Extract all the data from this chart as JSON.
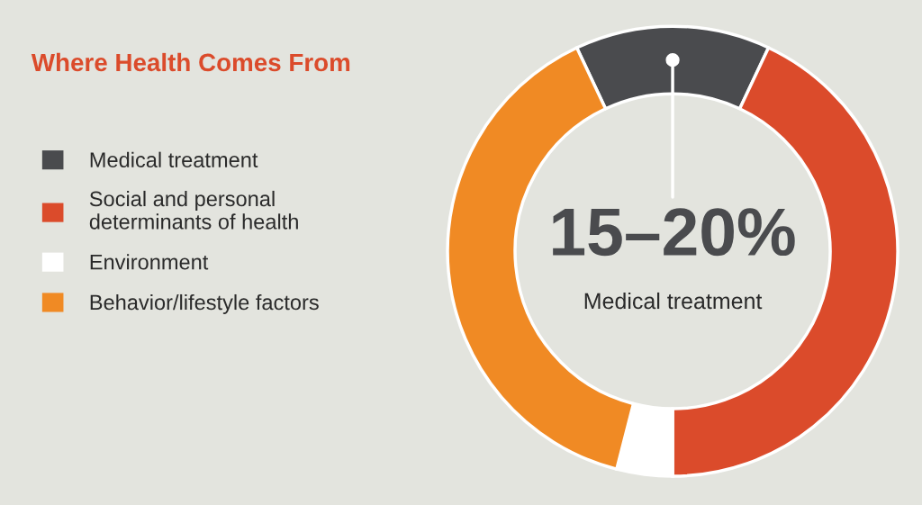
{
  "chart_data": {
    "type": "donut",
    "title": "Where Health Comes From",
    "categories": [
      "Medical treatment",
      "Social and personal\ndeterminants of health",
      "Environment",
      "Behavior/lifestyle factors"
    ],
    "values": [
      14,
      43,
      4,
      39
    ],
    "colors": [
      "#4a4b4e",
      "#db4b2b",
      "#ffffff",
      "#f08a24"
    ],
    "legend": "left",
    "annotations": [
      "15–20%",
      "Medical treatment"
    ]
  }
}
